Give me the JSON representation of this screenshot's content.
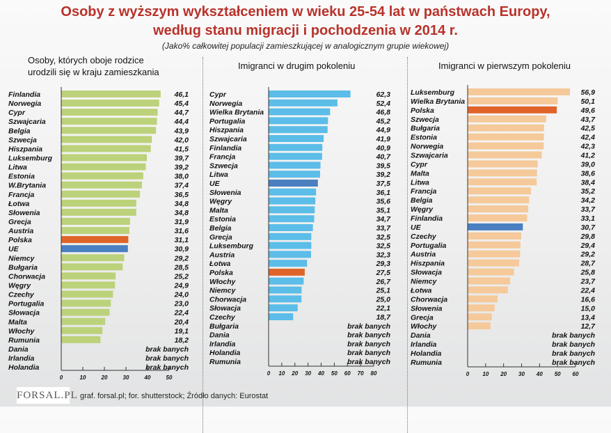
{
  "title_line1": "Osoby z wyższym wykształceniem w wieku 25-54 lat w państwach Europy,",
  "title_line2": "według stanu migracji i pochodzenia w 2014 r.",
  "subtitle": "(Jako% całkowitej populacji zamieszkującej w analogicznym grupie wiekowej)",
  "no_data_label": "brak banych",
  "logo_text": "FORSAL.PL",
  "footer": "graf. forsal.pl; for. shutterstock;  Źródło danych:  Eurostat",
  "colors": {
    "title": "#b8322a",
    "poland": "#e0642a",
    "eu": "#4a7fc1",
    "panel1": "#bcd27a",
    "panel2": "#5bbde8",
    "panel3": "#f5c99a"
  },
  "chart_data": [
    {
      "type": "bar",
      "orientation": "horizontal",
      "title": "Osoby, których oboje rodzice urodzili się w kraju zamieszkania",
      "title_lines": [
        "Osoby, których oboje rodzice",
        "urodzili się w kraju zamieszkania"
      ],
      "xlim": [
        0,
        50
      ],
      "xticks": [
        0,
        10,
        20,
        30,
        40,
        50
      ],
      "categories": [
        "Finlandia",
        "Norwegia",
        "Cypr",
        "Szwajcaria",
        "Belgia",
        "Szwecja",
        "Hiszpania",
        "Luksemburg",
        "Litwa",
        "Estonia",
        "W.Brytania",
        "Francja",
        "Łotwa",
        "Słowenia",
        "Grecja",
        "Austria",
        "Polska",
        "UE",
        "Niemcy",
        "Bułgaria",
        "Chorwacja",
        "Węgry",
        "Czechy",
        "Portugalia",
        "Słowacja",
        "Malta",
        "Włochy",
        "Rumunia",
        "Dania",
        "Irlandia",
        "Holandia"
      ],
      "values": [
        46.1,
        45.4,
        44.7,
        44.4,
        43.9,
        42.0,
        41.5,
        39.7,
        39.2,
        38.0,
        37.4,
        36.5,
        34.8,
        34.8,
        31.9,
        31.6,
        31.1,
        30.9,
        29.2,
        28.5,
        25.2,
        24.9,
        24.0,
        23.0,
        22.4,
        20.4,
        19.1,
        18.2,
        null,
        null,
        null
      ]
    },
    {
      "type": "bar",
      "orientation": "horizontal",
      "title": "Imigranci w drugim pokoleniu",
      "title_lines": [
        "Imigranci w drugim pokoleniu"
      ],
      "xlim": [
        0,
        80
      ],
      "xticks": [
        0,
        10,
        20,
        30,
        40,
        50,
        60,
        70,
        80
      ],
      "categories": [
        "Cypr",
        "Norwegia",
        "Wielka Brytania",
        "Portugalia",
        "Hiszpania",
        "Szwajcaria",
        "Finlandia",
        "Francja",
        "Szwecja",
        "Litwa",
        "UE",
        "Słowenia",
        "Węgry",
        "Malta",
        "Estonia",
        "Belgia",
        "Grecja",
        "Luksemburg",
        "Austria",
        "Łotwa",
        "Polska",
        "Włochy",
        "Niemcy",
        "Chorwacja",
        "Słowacja",
        "Czechy",
        "Bułgaria",
        "Dania",
        "Irlandia",
        "Holandia",
        "Rumunia"
      ],
      "values": [
        62.3,
        52.4,
        46.8,
        45.2,
        44.9,
        41.9,
        40.9,
        40.7,
        39.5,
        39.2,
        37.5,
        36.1,
        35.6,
        35.1,
        34.7,
        33.7,
        32.5,
        32.5,
        32.3,
        29.3,
        27.5,
        26.7,
        25.1,
        25.0,
        22.1,
        18.7,
        null,
        null,
        null,
        null,
        null
      ]
    },
    {
      "type": "bar",
      "orientation": "horizontal",
      "title": "Imigranci w pierwszym pokoleniu",
      "title_lines": [
        "Imigranci w pierwszym pokoleniu"
      ],
      "xlim": [
        0,
        60
      ],
      "xticks": [
        0,
        10,
        20,
        30,
        40,
        50,
        60
      ],
      "categories": [
        "Luksemburg",
        "Wielka Brytania",
        "Polska",
        "Szwecja",
        "Bułgaria",
        "Estonia",
        "Norwegia",
        "Szwajcaria",
        "Cypr",
        "Malta",
        "Litwa",
        "Francja",
        "Belgia",
        "Węgry",
        "Finlandia",
        "UE",
        "Czechy",
        "Portugalia",
        "Austria",
        "Hiszpania",
        "Słowacja",
        "Niemcy",
        "Łotwa",
        "Chorwacja",
        "Słowenia",
        "Grecja",
        "Włochy",
        "Dania",
        "Irlandia",
        "Holandia",
        "Rumunia"
      ],
      "values": [
        56.9,
        50.1,
        49.6,
        43.7,
        42.5,
        42.4,
        42.3,
        41.2,
        39.0,
        38.6,
        38.4,
        35.2,
        34.2,
        33.7,
        33.1,
        30.7,
        29.8,
        29.4,
        29.2,
        28.7,
        25.8,
        23.7,
        22.4,
        16.6,
        15.0,
        13.4,
        12.7,
        null,
        null,
        null,
        null
      ]
    }
  ]
}
